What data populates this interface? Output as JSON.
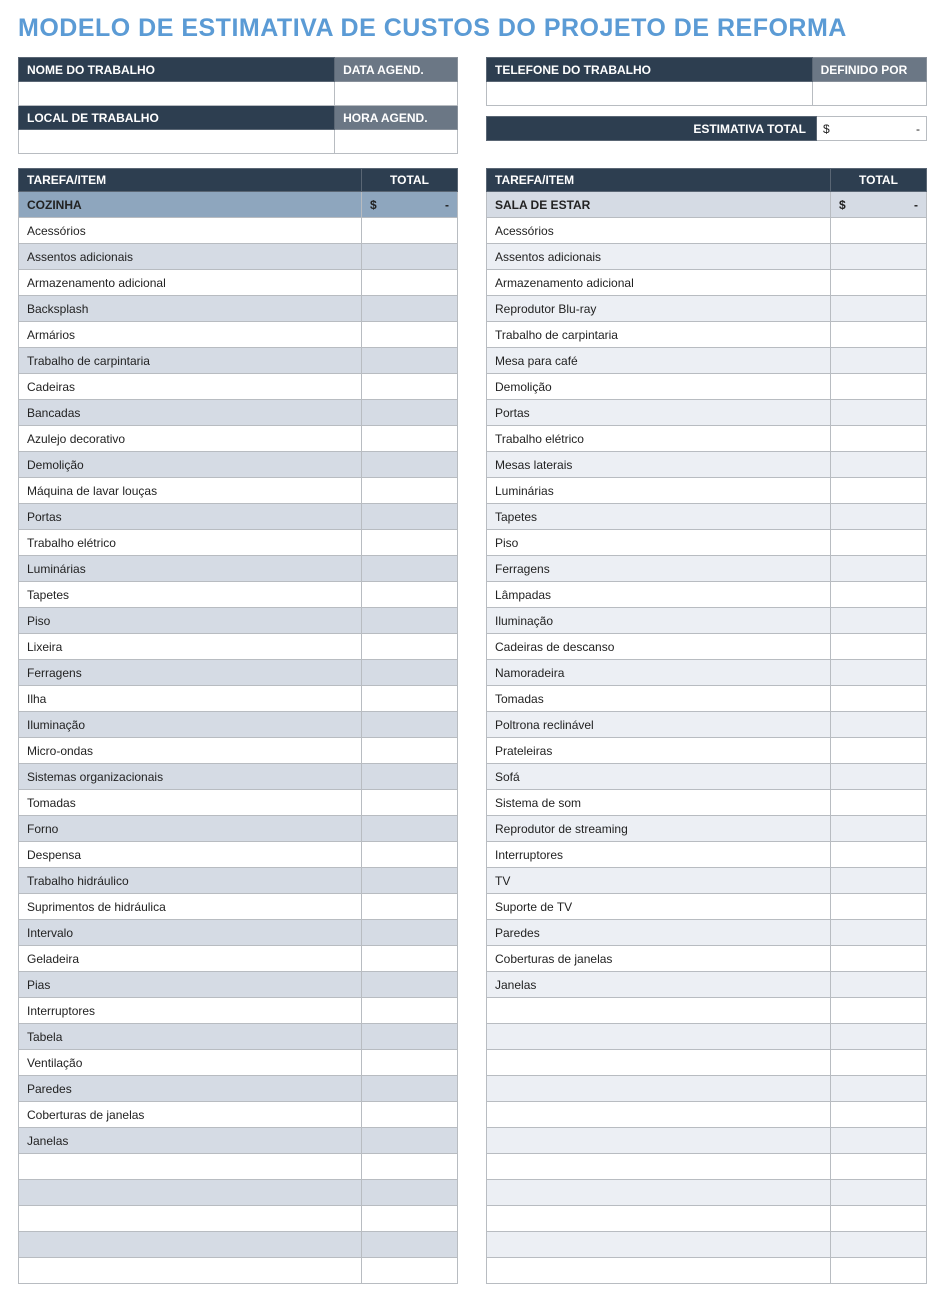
{
  "title": "MODELO DE ESTIMATIVA DE CUSTOS DO PROJETO DE REFORMA",
  "header_left": {
    "job_name_label": "NOME DO TRABALHO",
    "date_label": "DATA AGEND.",
    "job_location_label": "LOCAL DE TRABALHO",
    "time_label": "HORA AGEND.",
    "job_name_value": "",
    "date_value": "",
    "job_location_value": "",
    "time_value": ""
  },
  "header_right": {
    "phone_label": "TELEFONE DO TRABALHO",
    "defined_by_label": "DEFINIDO POR",
    "phone_value": "",
    "defined_by_value": ""
  },
  "estimate": {
    "label": "ESTIMATIVA TOTAL",
    "currency": "$",
    "value": "-"
  },
  "columns": {
    "task_item": "TAREFA/ITEM",
    "total": "TOTAL"
  },
  "left": {
    "section_name": "COZINHA",
    "section_total_currency": "$",
    "section_total_value": "-",
    "section_bg": "#8ea6be",
    "alt_row_bg": "#d5dbe4",
    "items": [
      "Acessórios",
      "Assentos adicionais",
      "Armazenamento adicional",
      "Backsplash",
      "Armários",
      "Trabalho de carpintaria",
      "Cadeiras",
      "Bancadas",
      "Azulejo decorativo",
      "Demolição",
      "Máquina de lavar louças",
      "Portas",
      "Trabalho elétrico",
      "Luminárias",
      "Tapetes",
      "Piso",
      "Lixeira",
      "Ferragens",
      "Ilha",
      "Iluminação",
      "Micro-ondas",
      "Sistemas organizacionais",
      "Tomadas",
      "Forno",
      "Despensa",
      "Trabalho hidráulico",
      "Suprimentos de hidráulica",
      "Intervalo",
      "Geladeira",
      "Pias",
      "Interruptores",
      "Tabela",
      "Ventilação",
      "Paredes",
      "Coberturas de janelas",
      "Janelas"
    ],
    "blank_rows": 5
  },
  "right": {
    "section_name": "SALA DE ESTAR",
    "section_total_currency": "$",
    "section_total_value": "-",
    "section_bg": "#d5dbe4",
    "alt_row_bg": "#eceff4",
    "items": [
      "Acessórios",
      "Assentos adicionais",
      "Armazenamento adicional",
      "Reprodutor Blu-ray",
      "Trabalho de carpintaria",
      "Mesa para café",
      "Demolição",
      "Portas",
      "Trabalho elétrico",
      "Mesas laterais",
      "Luminárias",
      "Tapetes",
      "Piso",
      "Ferragens",
      "Lâmpadas",
      "Iluminação",
      "Cadeiras de descanso",
      "Namoradeira",
      "Tomadas",
      "Poltrona reclinável",
      "Prateleiras",
      "Sofá",
      "Sistema de som",
      "Reprodutor de streaming",
      "Interruptores",
      "TV",
      "Suporte de TV",
      "Paredes",
      "Coberturas de janelas",
      "Janelas"
    ],
    "blank_rows": 11
  },
  "colors": {
    "title": "#5b9bd5",
    "header_dark": "#2d3e50",
    "header_gray": "#6b7785",
    "border": "#b8bcc1"
  }
}
